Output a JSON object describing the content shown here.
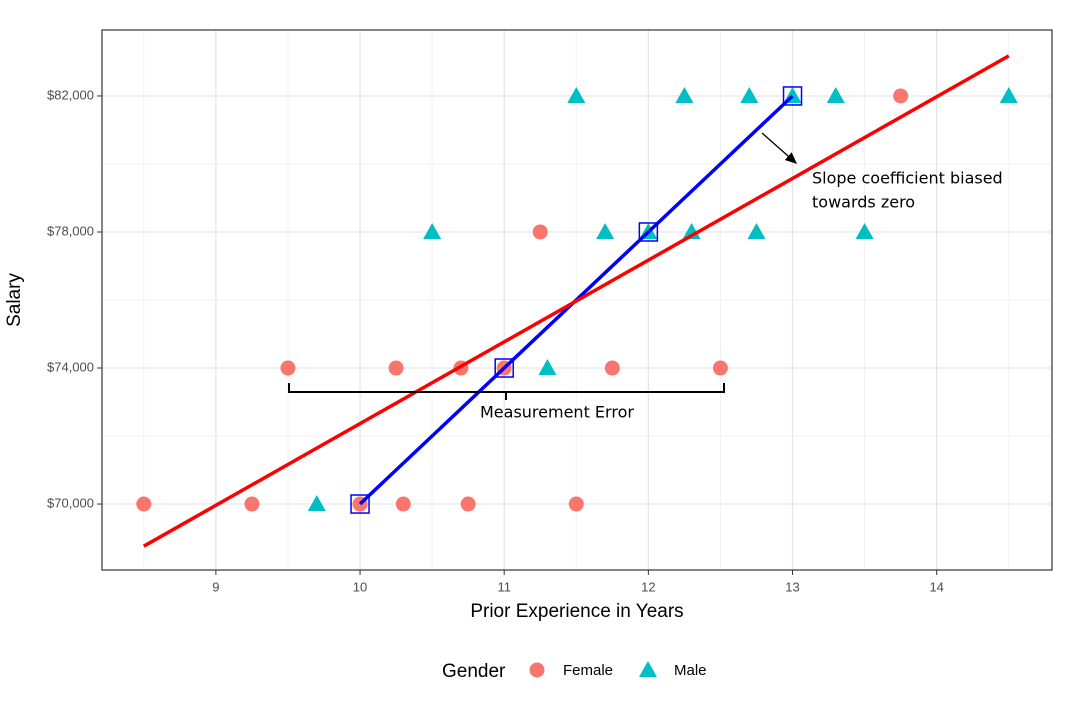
{
  "chart_data": {
    "type": "scatter",
    "x_label": "Prior Experience in Years",
    "y_label": "Salary",
    "xlim": [
      8.21,
      14.8
    ],
    "ylim": [
      68060,
      83940
    ],
    "xticks": [
      9,
      10,
      11,
      12,
      13,
      14
    ],
    "x_minor_ticks": [
      8.5,
      9.5,
      10.5,
      11.5,
      12.5,
      13.5,
      14.5
    ],
    "yticks": [
      {
        "value": 70000,
        "label": "$70,000"
      },
      {
        "value": 74000,
        "label": "$74,000"
      },
      {
        "value": 78000,
        "label": "$78,000"
      },
      {
        "value": 82000,
        "label": "$82,000"
      }
    ],
    "y_minor_ticks": [
      68000,
      72000,
      76000,
      80000
    ],
    "grid": true,
    "legend_title": "Gender",
    "legend_position": "bottom",
    "series": [
      {
        "name": "Female",
        "color": "#f8766d",
        "marker": "circle",
        "x": [
          8.5,
          9.25,
          10,
          10.3,
          10.75,
          11.5,
          9.5,
          10.25,
          10.7,
          11,
          11.75,
          12.5,
          11.25,
          13.75
        ],
        "values": [
          70000,
          70000,
          70000,
          70000,
          70000,
          70000,
          74000,
          74000,
          74000,
          74000,
          74000,
          74000,
          78000,
          82000
        ]
      },
      {
        "name": "Male",
        "color": "#00bfc4",
        "marker": "triangle",
        "x": [
          9.7,
          10.5,
          11.3,
          11.7,
          12,
          12.3,
          12.75,
          13.5,
          11.5,
          12.25,
          12.7,
          13,
          13.3,
          14.5
        ],
        "values": [
          70000,
          78000,
          74000,
          78000,
          78000,
          78000,
          78000,
          78000,
          82000,
          82000,
          82000,
          82000,
          82000,
          82000
        ]
      }
    ],
    "lines": [
      {
        "color": "#0000ff",
        "marker": "square",
        "x": [
          10,
          11,
          12,
          13
        ],
        "values": [
          70000,
          74000,
          78000,
          82000
        ]
      },
      {
        "color": "#ff0000",
        "x": [
          8.5,
          14.5
        ],
        "values": [
          68760,
          83180
        ]
      }
    ],
    "annotations": [
      {
        "lines": [
          "Slope coefficient biased",
          "towards zero"
        ]
      },
      {
        "lines": [
          "Measurement Error"
        ]
      }
    ]
  }
}
